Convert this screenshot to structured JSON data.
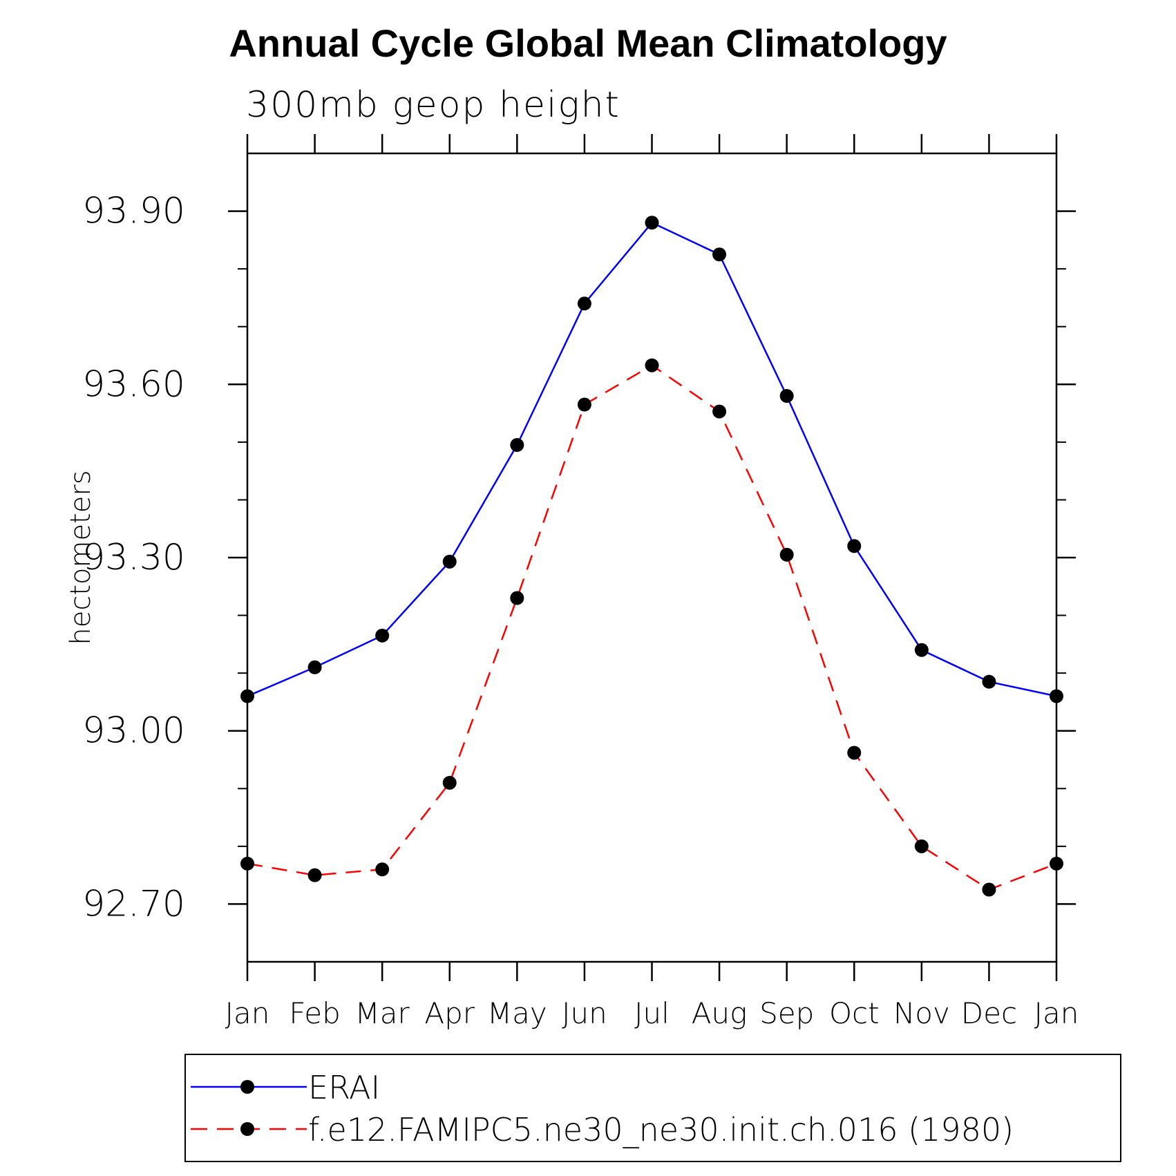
{
  "chart_data": {
    "type": "line",
    "title": "Annual Cycle Global Mean Climatology",
    "subtitle": "300mb geop height",
    "ylabel": "hectometers",
    "xlabel": "",
    "categories": [
      "Jan",
      "Feb",
      "Mar",
      "Apr",
      "May",
      "Jun",
      "Jul",
      "Aug",
      "Sep",
      "Oct",
      "Nov",
      "Dec",
      "Jan"
    ],
    "ylim": [
      92.6,
      94.0
    ],
    "yticks": [
      "93.90",
      "93.60",
      "93.30",
      "93.00",
      "92.70"
    ],
    "ytick_values": [
      93.9,
      93.6,
      93.3,
      93.0,
      92.7
    ],
    "grid": false,
    "legend_position": "bottom",
    "series": [
      {
        "name": "ERAI",
        "color": "#0000ff",
        "dash": "solid",
        "marker": "filled-circle",
        "values": [
          93.06,
          93.11,
          93.165,
          93.293,
          93.495,
          93.74,
          93.88,
          93.825,
          93.58,
          93.32,
          93.14,
          93.085,
          93.06
        ]
      },
      {
        "name": "f.e12.FAMIPC5.ne30_ne30.init.ch.016 (1980)",
        "color": "#ff0000",
        "dash": "dashed",
        "marker": "filled-circle",
        "values": [
          92.77,
          92.75,
          92.76,
          92.91,
          93.23,
          93.565,
          93.633,
          93.553,
          93.305,
          92.962,
          92.8,
          92.725,
          92.77
        ]
      }
    ]
  }
}
